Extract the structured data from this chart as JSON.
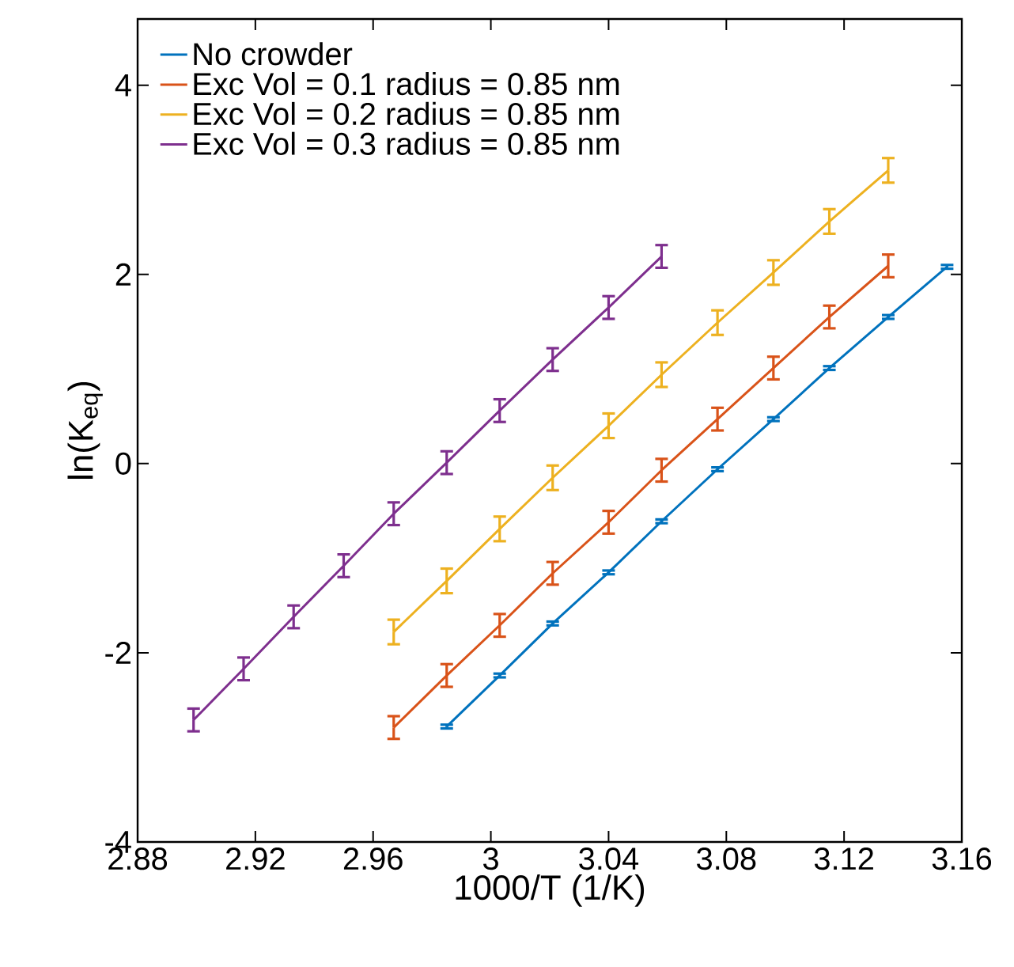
{
  "chart_data": {
    "type": "line",
    "xlabel": "1000/T (1/K)",
    "ylabel": "ln(K$_{eq}$)",
    "xlim": [
      2.88,
      3.16
    ],
    "ylim": [
      -4,
      4.7
    ],
    "xticks": [
      2.88,
      2.92,
      2.96,
      3,
      3.04,
      3.08,
      3.12,
      3.16
    ],
    "yticks": [
      -4,
      -2,
      0,
      2,
      4
    ],
    "grid": false,
    "legend": "top left",
    "marker": "none",
    "line_style": "solid",
    "series": [
      {
        "name": "No crowder",
        "color": "#0072bd",
        "x": [
          2.985,
          3.003,
          3.021,
          3.04,
          3.058,
          3.077,
          3.096,
          3.115,
          3.135,
          3.155
        ],
        "values": [
          -2.78,
          -2.24,
          -1.69,
          -1.15,
          -0.61,
          -0.06,
          0.47,
          1.01,
          1.55,
          2.08
        ],
        "errors": [
          0.02,
          0.02,
          0.02,
          0.02,
          0.02,
          0.02,
          0.02,
          0.02,
          0.02,
          0.02
        ]
      },
      {
        "name": "Exc Vol = 0.1  radius = 0.85 nm",
        "color": "#d95319",
        "x": [
          2.967,
          2.985,
          3.003,
          3.021,
          3.04,
          3.058,
          3.077,
          3.096,
          3.115,
          3.135
        ],
        "values": [
          -2.79,
          -2.24,
          -1.71,
          -1.16,
          -0.62,
          -0.07,
          0.47,
          1.01,
          1.55,
          2.09
        ],
        "errors": [
          0.12,
          0.12,
          0.12,
          0.12,
          0.12,
          0.12,
          0.12,
          0.12,
          0.12,
          0.12
        ]
      },
      {
        "name": "Exc Vol = 0.2  radius = 0.85 nm",
        "color": "#edb120",
        "x": [
          2.967,
          2.985,
          3.003,
          3.021,
          3.04,
          3.058,
          3.077,
          3.096,
          3.115,
          3.135
        ],
        "values": [
          -1.78,
          -1.24,
          -0.69,
          -0.15,
          0.4,
          0.94,
          1.49,
          2.02,
          2.56,
          3.1
        ],
        "errors": [
          0.13,
          0.13,
          0.13,
          0.13,
          0.13,
          0.13,
          0.13,
          0.13,
          0.13,
          0.13
        ]
      },
      {
        "name": "Exc Vol = 0.3  radius = 0.85 nm",
        "color": "#7e2f8e",
        "x": [
          2.899,
          2.916,
          2.933,
          2.95,
          2.967,
          2.985,
          3.003,
          3.021,
          3.04,
          3.058
        ],
        "values": [
          -2.71,
          -2.17,
          -1.62,
          -1.08,
          -0.53,
          0.01,
          0.56,
          1.1,
          1.65,
          2.19
        ],
        "errors": [
          0.12,
          0.12,
          0.12,
          0.12,
          0.12,
          0.12,
          0.12,
          0.12,
          0.12,
          0.12
        ]
      }
    ]
  }
}
